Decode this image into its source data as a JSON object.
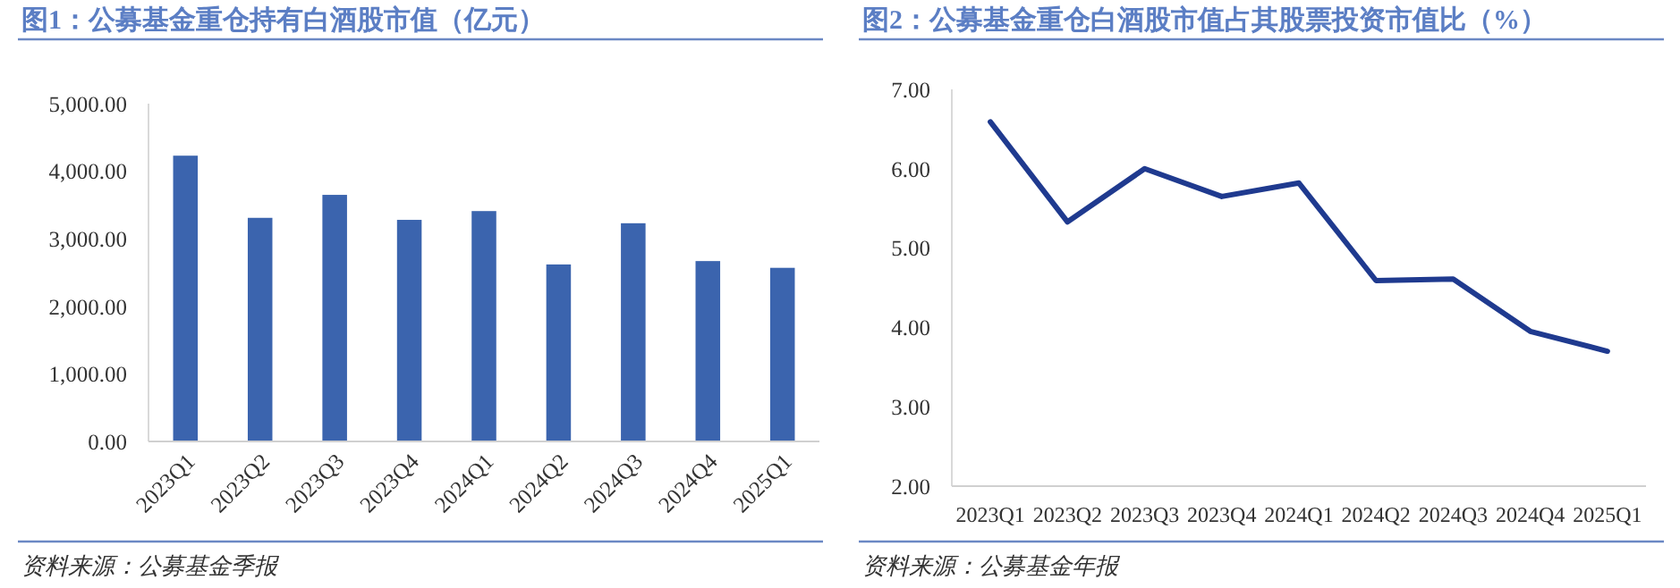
{
  "chart_data": [
    {
      "type": "bar",
      "title": "图1：公募基金重仓持有白酒股市值（亿元）",
      "categories": [
        "2023Q1",
        "2023Q2",
        "2023Q3",
        "2023Q4",
        "2024Q1",
        "2024Q2",
        "2024Q3",
        "2024Q4",
        "2025Q1"
      ],
      "values": [
        4230,
        3310,
        3650,
        3280,
        3410,
        2620,
        3230,
        2670,
        2570
      ],
      "color": "#3b64ae",
      "ylim": [
        0,
        5000
      ],
      "yticks": [
        {
          "value": 0,
          "label": "0.00"
        },
        {
          "value": 1000,
          "label": "1,000.00"
        },
        {
          "value": 2000,
          "label": "2,000.00"
        },
        {
          "value": 3000,
          "label": "3,000.00"
        },
        {
          "value": 4000,
          "label": "4,000.00"
        },
        {
          "value": 5000,
          "label": "5,000.00"
        }
      ],
      "grid": false,
      "annotations": [
        "资料来源：公募基金季报"
      ]
    },
    {
      "type": "line",
      "title": "图2：公募基金重仓白酒股市值占其股票投资市值比（%）",
      "categories": [
        "2023Q1",
        "2023Q2",
        "2023Q3",
        "2023Q4",
        "2024Q1",
        "2024Q2",
        "2024Q3",
        "2024Q4",
        "2025Q1"
      ],
      "values": [
        6.59,
        5.33,
        6.0,
        5.65,
        5.82,
        4.59,
        4.61,
        3.95,
        3.7
      ],
      "color": "#1f3a8f",
      "marker": "none",
      "line_style": "solid",
      "ylim": [
        2,
        7
      ],
      "yticks": [
        {
          "value": 2,
          "label": "2.00"
        },
        {
          "value": 3,
          "label": "3.00"
        },
        {
          "value": 4,
          "label": "4.00"
        },
        {
          "value": 5,
          "label": "5.00"
        },
        {
          "value": 6,
          "label": "6.00"
        },
        {
          "value": 7,
          "label": "7.00"
        }
      ],
      "grid": false,
      "annotations": [
        "资料来源：公募基金年报"
      ]
    }
  ]
}
